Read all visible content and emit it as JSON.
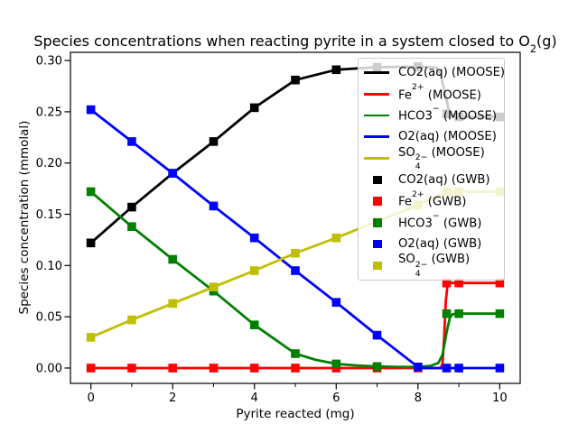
{
  "figure": {
    "background": "#ffffff"
  },
  "colors": {
    "co2": "#000000",
    "fe": "#ff0000",
    "hco3": "#008000",
    "o2": "#0000ff",
    "so4": "#bfbf00",
    "legend_border": "#cccccc",
    "axis": "#000000"
  },
  "chart_data": {
    "type": "line",
    "title": "Species concentrations when reacting pyrite in a system closed to O_{2}(g)",
    "xlabel": "Pyrite reacted (mg)",
    "ylabel": "Species concentration (mmolal)",
    "xlim": [
      -0.5,
      10.5
    ],
    "ylim": [
      -0.015,
      0.308
    ],
    "x_major_ticks": [
      0,
      2,
      4,
      6,
      8,
      10
    ],
    "x_minor_ticks": [
      1,
      3,
      5,
      7,
      9
    ],
    "y_ticks": [
      0.0,
      0.05,
      0.1,
      0.15,
      0.2,
      0.25,
      0.3
    ],
    "grid": false,
    "legend": {
      "position": "upper right",
      "frame_alpha": 0.8,
      "entries": [
        {
          "label": "CO2(aq) (MOOSE)",
          "handle": "line",
          "color": "#000000"
        },
        {
          "label": "Fe^{2+} (MOOSE)",
          "handle": "line",
          "color": "#ff0000"
        },
        {
          "label": "HCO3^{−} (MOOSE)",
          "handle": "line",
          "color": "#008000"
        },
        {
          "label": "O2(aq) (MOOSE)",
          "handle": "line",
          "color": "#0000ff"
        },
        {
          "label": "SO_{4}^{2−} (MOOSE)",
          "handle": "line",
          "color": "#bfbf00"
        },
        {
          "label": "CO2(aq) (GWB)",
          "handle": "square",
          "color": "#000000"
        },
        {
          "label": "Fe^{2+} (GWB)",
          "handle": "square",
          "color": "#ff0000"
        },
        {
          "label": "HCO3^{−} (GWB)",
          "handle": "square",
          "color": "#008000"
        },
        {
          "label": "O2(aq) (GWB)",
          "handle": "square",
          "color": "#0000ff"
        },
        {
          "label": "SO_{4}^{2−} (GWB)",
          "handle": "square",
          "color": "#bfbf00"
        }
      ]
    },
    "series": [
      {
        "name": "CO2(aq) (MOOSE)",
        "slug": "co2-moose",
        "style": "line",
        "color": "#000000",
        "x": [
          0,
          1,
          2,
          3,
          4,
          5,
          6,
          7,
          8,
          8.45,
          8.55,
          8.65,
          8.75,
          8.85,
          9,
          10
        ],
        "y": [
          0.122,
          0.157,
          0.19,
          0.221,
          0.254,
          0.281,
          0.291,
          0.2935,
          0.294,
          0.293,
          0.287,
          0.27,
          0.252,
          0.2455,
          0.245,
          0.245
        ]
      },
      {
        "name": "Fe^{2+} (MOOSE)",
        "slug": "fe-moose",
        "style": "line",
        "color": "#ff0000",
        "x": [
          0,
          2,
          4,
          6,
          8,
          8.55,
          8.6,
          8.64,
          8.68,
          8.72,
          8.78,
          9,
          10
        ],
        "y": [
          0.0,
          0.0,
          0.0,
          0.0,
          0.0,
          0.0,
          0.004,
          0.03,
          0.065,
          0.08,
          0.083,
          0.083,
          0.083
        ]
      },
      {
        "name": "HCO3^{−} (MOOSE)",
        "slug": "hco3-moose",
        "style": "line",
        "color": "#008000",
        "x": [
          0,
          1,
          2,
          3,
          4,
          5,
          5.5,
          6,
          6.5,
          7,
          7.5,
          8,
          8.3,
          8.5,
          8.6,
          8.7,
          8.78,
          8.85,
          9,
          10
        ],
        "y": [
          0.172,
          0.138,
          0.106,
          0.075,
          0.042,
          0.014,
          0.008,
          0.004,
          0.0025,
          0.0015,
          0.001,
          0.001,
          0.002,
          0.005,
          0.013,
          0.035,
          0.049,
          0.0525,
          0.053,
          0.053
        ]
      },
      {
        "name": "O2(aq) (MOOSE)",
        "slug": "o2-moose",
        "style": "line",
        "color": "#0000ff",
        "x": [
          0,
          1,
          2,
          3,
          4,
          5,
          6,
          7,
          8,
          8.15,
          10
        ],
        "y": [
          0.252,
          0.221,
          0.19,
          0.158,
          0.127,
          0.095,
          0.064,
          0.032,
          0.001,
          0.0,
          0.0
        ]
      },
      {
        "name": "SO_{4}^{2−} (MOOSE)",
        "slug": "so4-moose",
        "style": "line",
        "color": "#bfbf00",
        "x": [
          0,
          1,
          2,
          3,
          4,
          5,
          6,
          7,
          8,
          8.4,
          8.6,
          8.75,
          10
        ],
        "y": [
          0.03,
          0.047,
          0.063,
          0.079,
          0.095,
          0.112,
          0.127,
          0.143,
          0.159,
          0.1665,
          0.17,
          0.172,
          0.172
        ]
      },
      {
        "name": "CO2(aq) (GWB)",
        "slug": "co2-gwb",
        "style": "scatter",
        "color": "#000000",
        "x": [
          0,
          1,
          2,
          3,
          4,
          5,
          6,
          7,
          8,
          8.7,
          9,
          10
        ],
        "y": [
          0.122,
          0.157,
          0.19,
          0.221,
          0.254,
          0.281,
          0.291,
          0.2935,
          0.294,
          0.248,
          0.245,
          0.245
        ]
      },
      {
        "name": "Fe^{2+} (GWB)",
        "slug": "fe-gwb",
        "style": "scatter",
        "color": "#ff0000",
        "x": [
          0,
          1,
          2,
          3,
          4,
          5,
          6,
          7,
          8,
          8.7,
          9,
          10
        ],
        "y": [
          0.0,
          0.0,
          0.0,
          0.0,
          0.0,
          0.0,
          0.0,
          0.0,
          0.0,
          0.083,
          0.083,
          0.083
        ]
      },
      {
        "name": "HCO3^{−} (GWB)",
        "slug": "hco3-gwb",
        "style": "scatter",
        "color": "#008000",
        "x": [
          0,
          1,
          2,
          3,
          4,
          5,
          6,
          7,
          8,
          8.7,
          9,
          10
        ],
        "y": [
          0.172,
          0.138,
          0.106,
          0.075,
          0.042,
          0.014,
          0.004,
          0.0015,
          0.001,
          0.053,
          0.053,
          0.053
        ]
      },
      {
        "name": "O2(aq) (GWB)",
        "slug": "o2-gwb",
        "style": "scatter",
        "color": "#0000ff",
        "x": [
          0,
          1,
          2,
          3,
          4,
          5,
          6,
          7,
          8,
          8.7,
          9,
          10
        ],
        "y": [
          0.252,
          0.221,
          0.19,
          0.158,
          0.127,
          0.095,
          0.064,
          0.032,
          0.001,
          0.0,
          0.0,
          0.0
        ]
      },
      {
        "name": "SO_{4}^{2−} (GWB)",
        "slug": "so4-gwb",
        "style": "scatter",
        "color": "#bfbf00",
        "x": [
          0,
          1,
          2,
          3,
          4,
          5,
          6,
          7,
          8,
          8.7,
          9,
          10
        ],
        "y": [
          0.03,
          0.047,
          0.063,
          0.079,
          0.095,
          0.112,
          0.127,
          0.143,
          0.159,
          0.172,
          0.172,
          0.172
        ]
      }
    ]
  }
}
